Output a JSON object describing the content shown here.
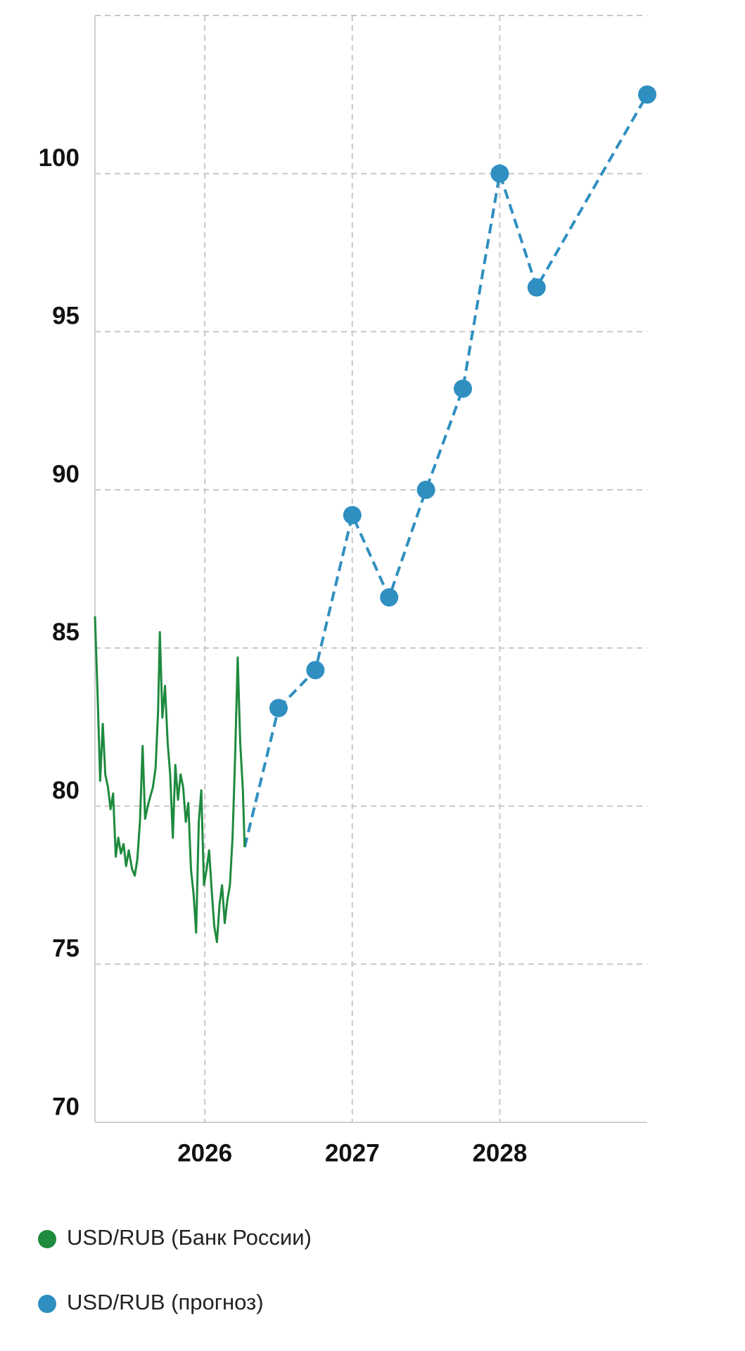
{
  "chart_data": {
    "type": "line",
    "xlim": [
      2025.255,
      2029.0
    ],
    "xticks": [
      2026,
      2027,
      2028
    ],
    "ylim": [
      70,
      105
    ],
    "yticks": [
      70,
      75,
      80,
      85,
      90,
      95,
      100
    ],
    "grid": true,
    "legend": "bottom",
    "series": [
      {
        "name": "USD/RUB (Банк России)",
        "color": "#1e8a3e",
        "markers": false,
        "dashed": false,
        "x": [
          2025.255,
          2025.273,
          2025.29,
          2025.308,
          2025.325,
          2025.343,
          2025.361,
          2025.378,
          2025.396,
          2025.413,
          2025.431,
          2025.449,
          2025.466,
          2025.484,
          2025.507,
          2025.525,
          2025.542,
          2025.56,
          2025.578,
          2025.595,
          2025.613,
          2025.63,
          2025.648,
          2025.666,
          2025.683,
          2025.695,
          2025.712,
          2025.73,
          2025.748,
          2025.765,
          2025.783,
          2025.8,
          2025.818,
          2025.836,
          2025.853,
          2025.871,
          2025.888,
          2025.906,
          2025.924,
          2025.941,
          2025.959,
          2025.976,
          2025.994,
          2026.012,
          2026.029,
          2026.047,
          2026.064,
          2026.082,
          2026.1,
          2026.117,
          2026.135,
          2026.152,
          2026.17,
          2026.188,
          2026.205,
          2026.223,
          2026.24,
          2026.258,
          2026.27
        ],
        "values": [
          86.0,
          83.5,
          80.8,
          82.6,
          81.0,
          80.6,
          79.9,
          80.4,
          78.4,
          79.0,
          78.5,
          78.8,
          78.1,
          78.6,
          78.0,
          77.8,
          78.3,
          79.5,
          81.9,
          79.6,
          80.0,
          80.3,
          80.6,
          81.2,
          83.0,
          85.5,
          82.8,
          83.8,
          82.0,
          81.0,
          79.0,
          81.3,
          80.2,
          81.0,
          80.6,
          79.5,
          80.1,
          78.0,
          77.2,
          76.0,
          79.5,
          80.5,
          77.5,
          78.0,
          78.6,
          77.3,
          76.2,
          75.7,
          76.9,
          77.5,
          76.3,
          77.0,
          77.5,
          79.0,
          81.5,
          84.7,
          82.0,
          80.5,
          78.7
        ]
      },
      {
        "name": "USD/RUB (прогноз)",
        "color": "#2f8fc0",
        "markers": true,
        "dashed": true,
        "x": [
          2026.5,
          2026.75,
          2027.0,
          2027.25,
          2027.5,
          2027.75,
          2028.0,
          2028.25,
          2029.0
        ],
        "values": [
          83.1,
          84.3,
          89.2,
          86.6,
          90.0,
          93.2,
          100.0,
          96.4,
          102.5
        ]
      }
    ]
  }
}
